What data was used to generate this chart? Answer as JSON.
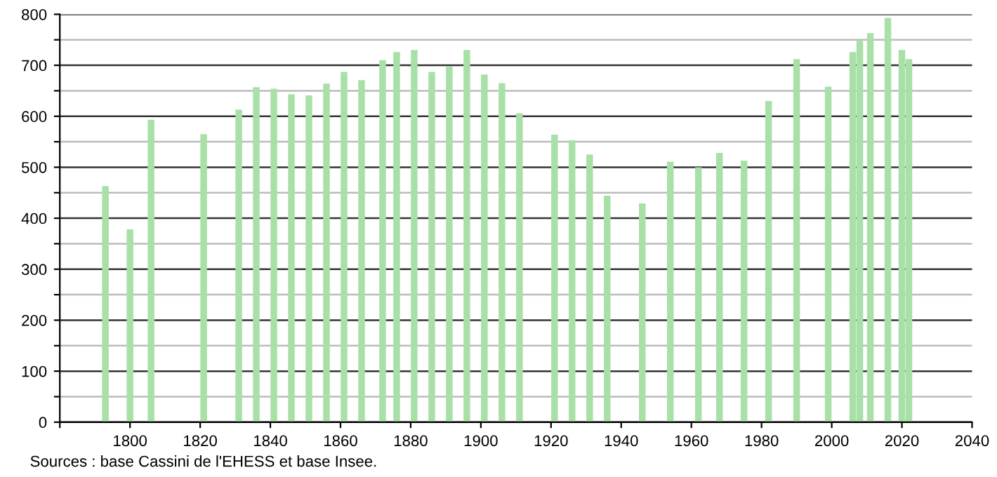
{
  "chart_data": {
    "type": "bar",
    "x": [
      1793,
      1800,
      1806,
      1821,
      1831,
      1836,
      1841,
      1846,
      1851,
      1856,
      1861,
      1866,
      1872,
      1876,
      1881,
      1886,
      1891,
      1896,
      1901,
      1906,
      1911,
      1921,
      1926,
      1931,
      1936,
      1946,
      1954,
      1962,
      1968,
      1975,
      1982,
      1990,
      1999,
      2006,
      2008,
      2011,
      2016,
      2020,
      2022
    ],
    "values": [
      463,
      378,
      593,
      565,
      613,
      657,
      654,
      643,
      641,
      664,
      687,
      671,
      710,
      726,
      730,
      687,
      698,
      730,
      682,
      665,
      606,
      564,
      553,
      525,
      444,
      429,
      511,
      500,
      528,
      513,
      630,
      712,
      658,
      726,
      748,
      763,
      793,
      730,
      712
    ],
    "color": "#a8e0a8",
    "xlim": [
      1780,
      2040
    ],
    "xticks": [
      {
        "value": 1780,
        "label": null
      },
      1800,
      1820,
      1840,
      1860,
      1880,
      1900,
      1920,
      1940,
      1960,
      1980,
      2000,
      2020,
      2040
    ],
    "ylim": [
      0,
      800
    ],
    "yticks": [
      0,
      {
        "value": 50,
        "label": null
      },
      100,
      {
        "value": 150,
        "label": null
      },
      200,
      {
        "value": 250,
        "label": null
      },
      300,
      {
        "value": 350,
        "label": null
      },
      400,
      {
        "value": 450,
        "label": null
      },
      500,
      {
        "value": 550,
        "label": null
      },
      600,
      {
        "value": 650,
        "label": null
      },
      700,
      {
        "value": 750,
        "label": null
      },
      800
    ],
    "grid": "y",
    "annotations": [
      "Sources : base Cassini de l'EHESS et base Insee."
    ]
  }
}
